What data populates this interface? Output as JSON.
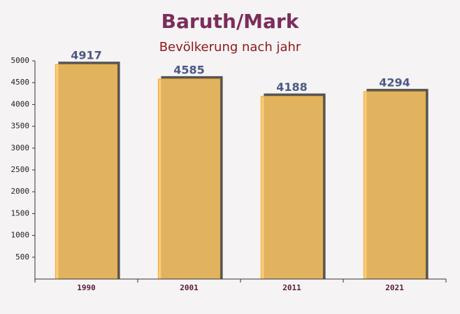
{
  "chart_data": {
    "type": "bar",
    "title": "Baruth/Mark",
    "subtitle": "Bevölkerung nach jahr",
    "categories": [
      "1990",
      "2001",
      "2011",
      "2021"
    ],
    "values": [
      4917,
      4585,
      4188,
      4294
    ],
    "color": "#fcc462",
    "ylim": [
      0,
      5000
    ],
    "yticks": [
      500,
      1000,
      1500,
      2000,
      2500,
      3000,
      3500,
      4000,
      4500,
      5000
    ],
    "grid": false
  }
}
